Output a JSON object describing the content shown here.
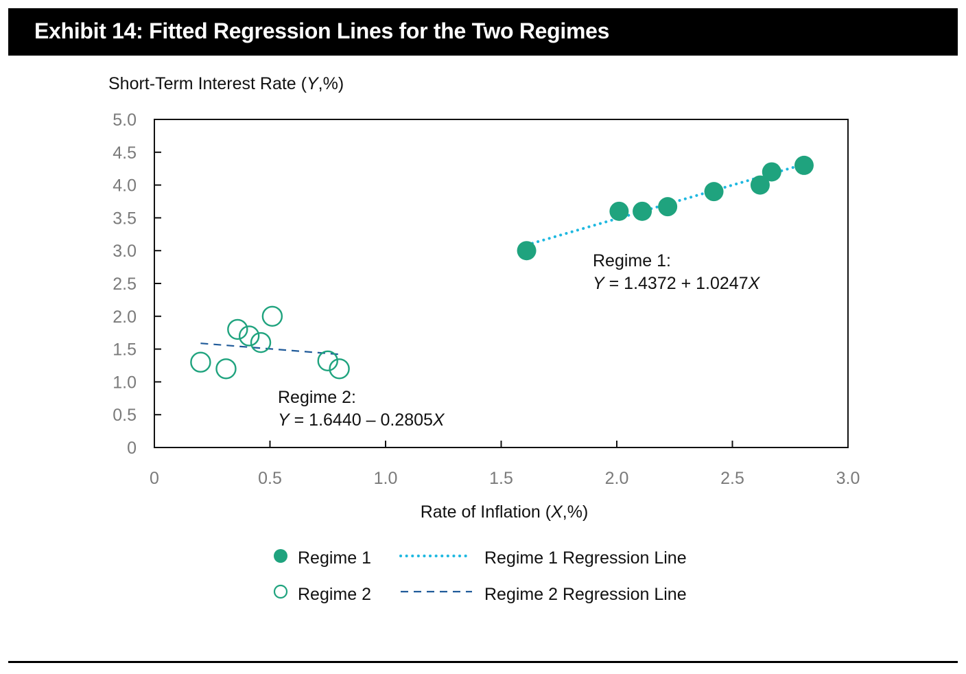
{
  "title": "Exhibit 14: Fitted Regression Lines for the Two Regimes",
  "colors": {
    "regime1": "#1fa37e",
    "regime2": "#1fa37e",
    "regime1_line": "#1eb8e0",
    "regime2_line": "#1f5a99"
  },
  "chart_data": {
    "type": "scatter",
    "title": "Exhibit 14: Fitted Regression Lines for the Two Regimes",
    "ylabel_parts": [
      "Short-Term Interest Rate (",
      "Y",
      ",%)"
    ],
    "xlabel_parts": [
      "Rate of Inflation (",
      "X",
      ",%)"
    ],
    "xlim": [
      0,
      3.0
    ],
    "ylim": [
      0,
      5.0
    ],
    "x_ticks": [
      "0",
      "0.5",
      "1.0",
      "1.5",
      "2.0",
      "2.5",
      "3.0"
    ],
    "y_ticks": [
      "0",
      "0.5",
      "1.0",
      "1.5",
      "2.0",
      "2.5",
      "3.0",
      "3.5",
      "4.0",
      "4.5",
      "5.0"
    ],
    "grid": false,
    "legend_position": "bottom",
    "series": [
      {
        "name": "Regime 1",
        "marker": "filled-circle",
        "points": [
          [
            1.61,
            3.0
          ],
          [
            2.01,
            3.6
          ],
          [
            2.11,
            3.6
          ],
          [
            2.22,
            3.67
          ],
          [
            2.42,
            3.9
          ],
          [
            2.62,
            4.0
          ],
          [
            2.67,
            4.2
          ],
          [
            2.81,
            4.3
          ]
        ]
      },
      {
        "name": "Regime 2",
        "marker": "open-circle",
        "points": [
          [
            0.2,
            1.3
          ],
          [
            0.31,
            1.2
          ],
          [
            0.36,
            1.8
          ],
          [
            0.41,
            1.7
          ],
          [
            0.46,
            1.6
          ],
          [
            0.51,
            2.0
          ],
          [
            0.75,
            1.32
          ],
          [
            0.8,
            1.2
          ]
        ]
      }
    ],
    "lines": [
      {
        "name": "Regime 1 Regression Line",
        "style": "dotted",
        "intercept": 1.4372,
        "slope": 1.0247,
        "x_range": [
          1.61,
          2.81
        ]
      },
      {
        "name": "Regime 2 Regression Line",
        "style": "dashed",
        "intercept": 1.644,
        "slope": -0.2805,
        "x_range": [
          0.2,
          0.8
        ]
      }
    ],
    "annotations": [
      {
        "label": "Regime 1:",
        "equation_parts": [
          "Y",
          " = 1.4372 + 1.0247",
          "X"
        ]
      },
      {
        "label": "Regime 2:",
        "equation_parts": [
          "Y",
          " = 1.6440 – 0.2805",
          "X"
        ]
      }
    ],
    "legend": [
      {
        "label": "Regime 1",
        "kind": "filled-circle"
      },
      {
        "label": "Regime 1 Regression Line",
        "kind": "dotted-line"
      },
      {
        "label": "Regime 2",
        "kind": "open-circle"
      },
      {
        "label": "Regime 2 Regression Line",
        "kind": "dashed-line"
      }
    ]
  }
}
